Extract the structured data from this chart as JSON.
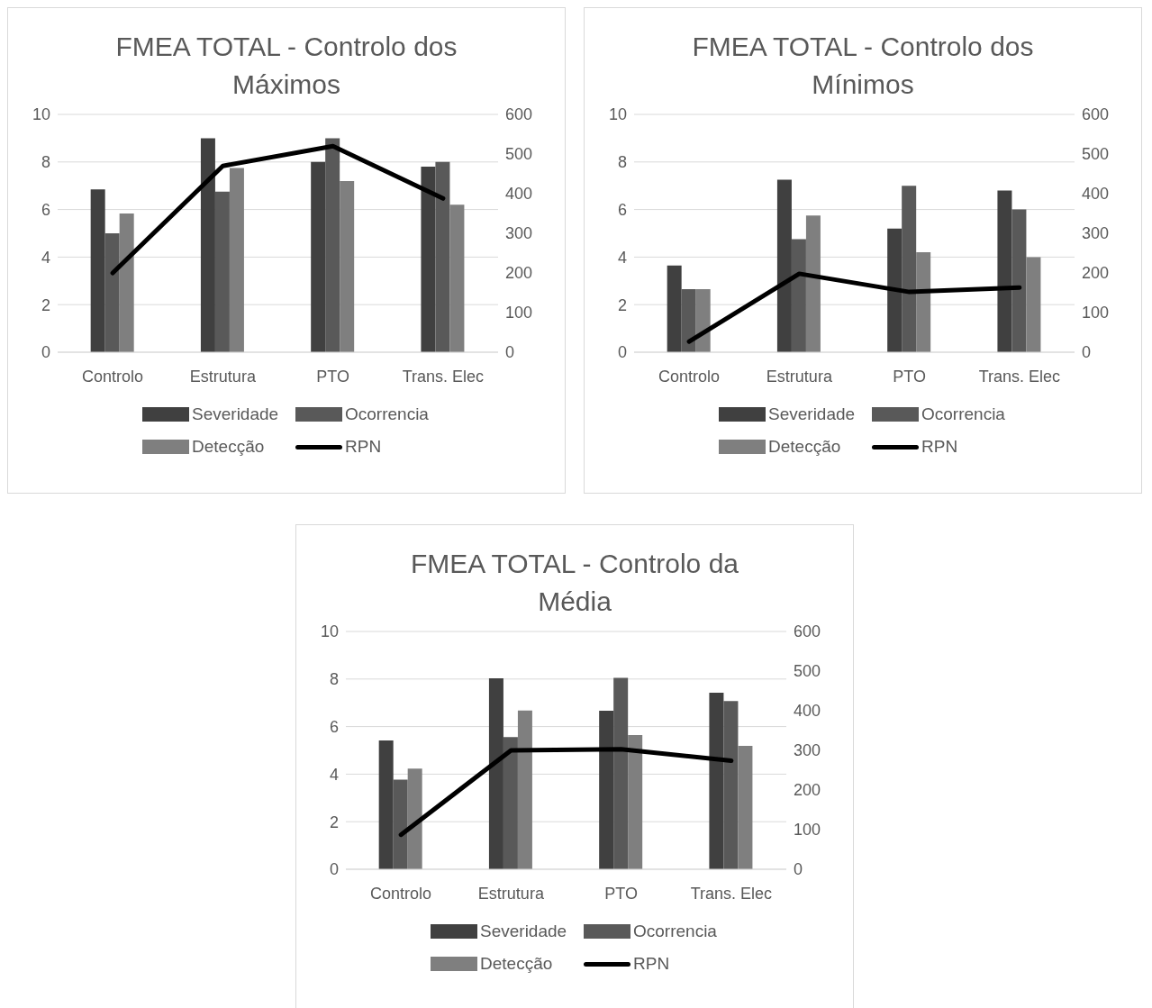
{
  "chart_data": [
    {
      "type": "bar",
      "title": "FMEA TOTAL - Controlo dos Máximos",
      "categories": [
        "Controlo",
        "Estrutura",
        "PTO",
        "Trans. Elec"
      ],
      "series": [
        {
          "name": "Severidade",
          "color": "#404040",
          "values": [
            6.85,
            9,
            8,
            7.8
          ]
        },
        {
          "name": "Ocorrencia",
          "color": "#595959",
          "values": [
            5,
            6.75,
            9,
            8
          ]
        },
        {
          "name": "Detecção",
          "color": "#7f7f7f",
          "values": [
            5.83,
            7.75,
            7.2,
            6.2
          ]
        },
        {
          "name": "RPN",
          "type": "line",
          "axis": "y2",
          "color": "#000000",
          "values": [
            200,
            470,
            520,
            388
          ]
        }
      ],
      "ylim": [
        0,
        10
      ],
      "yticks": [
        0,
        2,
        4,
        6,
        8,
        10
      ],
      "y2lim": [
        0,
        600
      ],
      "y2ticks": [
        0,
        100,
        200,
        300,
        400,
        500,
        600
      ],
      "grid": "y",
      "legend": "bottom",
      "marker": "none"
    },
    {
      "type": "bar",
      "title": "FMEA TOTAL - Controlo dos Mínimos",
      "categories": [
        "Controlo",
        "Estrutura",
        "PTO",
        "Trans. Elec"
      ],
      "series": [
        {
          "name": "Severidade",
          "color": "#404040",
          "values": [
            3.65,
            7.25,
            5.2,
            6.8
          ]
        },
        {
          "name": "Ocorrencia",
          "color": "#595959",
          "values": [
            2.65,
            4.75,
            7,
            6
          ]
        },
        {
          "name": "Detecção",
          "color": "#7f7f7f",
          "values": [
            2.65,
            5.75,
            4.2,
            4
          ]
        },
        {
          "name": "RPN",
          "type": "line",
          "axis": "y2",
          "color": "#000000",
          "values": [
            27,
            198,
            152,
            163
          ]
        }
      ],
      "ylim": [
        0,
        10
      ],
      "yticks": [
        0,
        2,
        4,
        6,
        8,
        10
      ],
      "y2lim": [
        0,
        600
      ],
      "y2ticks": [
        0,
        100,
        200,
        300,
        400,
        500,
        600
      ],
      "grid": "y",
      "legend": "bottom",
      "marker": "none"
    },
    {
      "type": "bar",
      "title": "FMEA TOTAL - Controlo da Média",
      "categories": [
        "Controlo",
        "Estrutura",
        "PTO",
        "Trans. Elec"
      ],
      "series": [
        {
          "name": "Severidade",
          "color": "#404040",
          "values": [
            5.42,
            8.03,
            6.67,
            7.42
          ]
        },
        {
          "name": "Ocorrencia",
          "color": "#595959",
          "values": [
            3.77,
            5.56,
            8.05,
            7.07
          ]
        },
        {
          "name": "Detecção",
          "color": "#7f7f7f",
          "values": [
            4.23,
            6.68,
            5.64,
            5.19
          ]
        },
        {
          "name": "RPN",
          "type": "line",
          "axis": "y2",
          "color": "#000000",
          "values": [
            87,
            300,
            303,
            274
          ]
        }
      ],
      "ylim": [
        0,
        10
      ],
      "yticks": [
        0,
        2,
        4,
        6,
        8,
        10
      ],
      "y2lim": [
        0,
        600
      ],
      "y2ticks": [
        0,
        100,
        200,
        300,
        400,
        500,
        600
      ],
      "grid": "y",
      "legend": "bottom",
      "marker": "none"
    }
  ]
}
